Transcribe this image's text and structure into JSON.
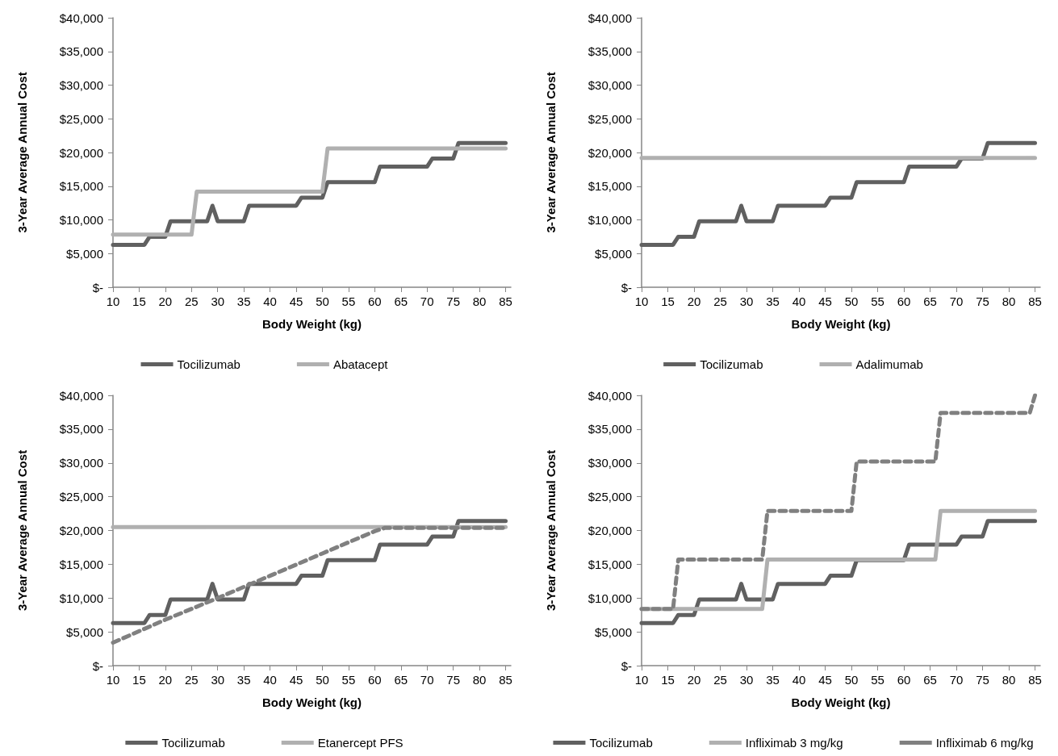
{
  "chart_data": [
    {
      "type": "line",
      "xlabel": "Body Weight (kg)",
      "ylabel": "3-Year Average Annual Cost",
      "xlim": [
        10,
        86
      ],
      "xticks": [
        10,
        15,
        20,
        25,
        30,
        35,
        40,
        45,
        50,
        55,
        60,
        65,
        70,
        75,
        80,
        85
      ],
      "ylim": [
        0,
        40000
      ],
      "yticks": [
        {
          "value": 0,
          "label": "$-"
        },
        {
          "value": 5000,
          "label": "$5,000"
        },
        {
          "value": 10000,
          "label": "$10,000"
        },
        {
          "value": 15000,
          "label": "$15,000"
        },
        {
          "value": 20000,
          "label": "$20,000"
        },
        {
          "value": 25000,
          "label": "$25,000"
        },
        {
          "value": 30000,
          "label": "$30,000"
        },
        {
          "value": 35000,
          "label": "$35,000"
        },
        {
          "value": 40000,
          "label": "$40,000"
        }
      ],
      "grid": false,
      "legend": "bottom",
      "marker": "none",
      "series": [
        {
          "name": "Tocilizumab",
          "color": "#606060",
          "line_style": "solid",
          "x": [
            10,
            16,
            17,
            20,
            21,
            28,
            29,
            30,
            35,
            36,
            45,
            46,
            50,
            51,
            60,
            61,
            70,
            71,
            75,
            76,
            85
          ],
          "values": [
            6300,
            6300,
            7500,
            7500,
            9800,
            9800,
            12100,
            9800,
            9800,
            12100,
            12100,
            13300,
            13300,
            15600,
            15600,
            17900,
            17900,
            19100,
            19100,
            21400,
            21400
          ]
        },
        {
          "name": "Abatacept",
          "color": "#b0b0b0",
          "line_style": "solid",
          "x": [
            10,
            25,
            26,
            50,
            51,
            85
          ],
          "values": [
            7800,
            7800,
            14200,
            14200,
            20600,
            20600
          ]
        }
      ]
    },
    {
      "type": "line",
      "xlabel": "Body Weight (kg)",
      "ylabel": "3-Year Average Annual Cost",
      "xlim": [
        10,
        86
      ],
      "xticks": [
        10,
        15,
        20,
        25,
        30,
        35,
        40,
        45,
        50,
        55,
        60,
        65,
        70,
        75,
        80,
        85
      ],
      "ylim": [
        0,
        40000
      ],
      "yticks": [
        {
          "value": 0,
          "label": "$-"
        },
        {
          "value": 5000,
          "label": "$5,000"
        },
        {
          "value": 10000,
          "label": "$10,000"
        },
        {
          "value": 15000,
          "label": "$15,000"
        },
        {
          "value": 20000,
          "label": "$20,000"
        },
        {
          "value": 25000,
          "label": "$25,000"
        },
        {
          "value": 30000,
          "label": "$30,000"
        },
        {
          "value": 35000,
          "label": "$35,000"
        },
        {
          "value": 40000,
          "label": "$40,000"
        }
      ],
      "grid": false,
      "legend": "bottom",
      "marker": "none",
      "series": [
        {
          "name": "Tocilizumab",
          "color": "#606060",
          "line_style": "solid",
          "x": [
            10,
            16,
            17,
            20,
            21,
            28,
            29,
            30,
            35,
            36,
            45,
            46,
            50,
            51,
            60,
            61,
            70,
            71,
            75,
            76,
            85
          ],
          "values": [
            6300,
            6300,
            7500,
            7500,
            9800,
            9800,
            12100,
            9800,
            9800,
            12100,
            12100,
            13300,
            13300,
            15600,
            15600,
            17900,
            17900,
            19100,
            19100,
            21400,
            21400
          ]
        },
        {
          "name": "Adalimumab",
          "color": "#b0b0b0",
          "line_style": "solid",
          "x": [
            10,
            85
          ],
          "values": [
            19200,
            19200
          ]
        }
      ]
    },
    {
      "type": "line",
      "xlabel": "Body Weight (kg)",
      "ylabel": "3-Year Average Annual Cost",
      "xlim": [
        10,
        86
      ],
      "xticks": [
        10,
        15,
        20,
        25,
        30,
        35,
        40,
        45,
        50,
        55,
        60,
        65,
        70,
        75,
        80,
        85
      ],
      "ylim": [
        0,
        40000
      ],
      "yticks": [
        {
          "value": 0,
          "label": "$-"
        },
        {
          "value": 5000,
          "label": "$5,000"
        },
        {
          "value": 10000,
          "label": "$10,000"
        },
        {
          "value": 15000,
          "label": "$15,000"
        },
        {
          "value": 20000,
          "label": "$20,000"
        },
        {
          "value": 25000,
          "label": "$25,000"
        },
        {
          "value": 30000,
          "label": "$30,000"
        },
        {
          "value": 35000,
          "label": "$35,000"
        },
        {
          "value": 40000,
          "label": "$40,000"
        }
      ],
      "grid": false,
      "legend": "bottom",
      "marker": "none",
      "series": [
        {
          "name": "Tocilizumab",
          "color": "#606060",
          "line_style": "solid",
          "x": [
            10,
            16,
            17,
            20,
            21,
            28,
            29,
            30,
            35,
            36,
            45,
            46,
            50,
            51,
            60,
            61,
            70,
            71,
            75,
            76,
            85
          ],
          "values": [
            6300,
            6300,
            7500,
            7500,
            9800,
            9800,
            12100,
            9800,
            9800,
            12100,
            12100,
            13300,
            13300,
            15600,
            15600,
            17900,
            17900,
            19100,
            19100,
            21400,
            21400
          ]
        },
        {
          "name": "Etanercept PFS",
          "color": "#b0b0b0",
          "line_style": "solid",
          "x": [
            10,
            85
          ],
          "values": [
            20500,
            20500
          ]
        },
        {
          "color": "#808080",
          "line_style": "dashed",
          "x": [
            10,
            20,
            30,
            40,
            50,
            60,
            62,
            85
          ],
          "values": [
            3400,
            6800,
            10000,
            13300,
            16600,
            19900,
            20400,
            20400
          ]
        }
      ]
    },
    {
      "type": "line",
      "xlabel": "Body Weight (kg)",
      "ylabel": "3-Year Average Annual Cost",
      "xlim": [
        10,
        86
      ],
      "xticks": [
        10,
        15,
        20,
        25,
        30,
        35,
        40,
        45,
        50,
        55,
        60,
        65,
        70,
        75,
        80,
        85
      ],
      "ylim": [
        0,
        40000
      ],
      "yticks": [
        {
          "value": 0,
          "label": "$-"
        },
        {
          "value": 5000,
          "label": "$5,000"
        },
        {
          "value": 10000,
          "label": "$10,000"
        },
        {
          "value": 15000,
          "label": "$15,000"
        },
        {
          "value": 20000,
          "label": "$20,000"
        },
        {
          "value": 25000,
          "label": "$25,000"
        },
        {
          "value": 30000,
          "label": "$30,000"
        },
        {
          "value": 35000,
          "label": "$35,000"
        },
        {
          "value": 40000,
          "label": "$40,000"
        }
      ],
      "grid": false,
      "legend": "bottom",
      "marker": "none",
      "series": [
        {
          "name": "Tocilizumab",
          "color": "#606060",
          "line_style": "solid",
          "x": [
            10,
            16,
            17,
            20,
            21,
            28,
            29,
            30,
            35,
            36,
            45,
            46,
            50,
            51,
            60,
            61,
            70,
            71,
            75,
            76,
            85
          ],
          "values": [
            6300,
            6300,
            7500,
            7500,
            9800,
            9800,
            12100,
            9800,
            9800,
            12100,
            12100,
            13300,
            13300,
            15600,
            15600,
            17900,
            17900,
            19100,
            19100,
            21400,
            21400
          ]
        },
        {
          "name": "Infliximab 3 mg/kg",
          "color": "#b0b0b0",
          "line_style": "solid",
          "x": [
            10,
            33,
            34,
            66,
            67,
            85
          ],
          "values": [
            8400,
            8400,
            15700,
            15700,
            22900,
            22900
          ]
        },
        {
          "name": "Infliximab 6 mg/kg",
          "color": "#808080",
          "line_style": "dashed",
          "x": [
            10,
            16,
            17,
            33,
            34,
            50,
            51,
            66,
            67,
            84,
            85
          ],
          "values": [
            8400,
            8400,
            15700,
            15700,
            22900,
            22900,
            30200,
            30200,
            37400,
            37400,
            40000
          ]
        }
      ]
    }
  ]
}
